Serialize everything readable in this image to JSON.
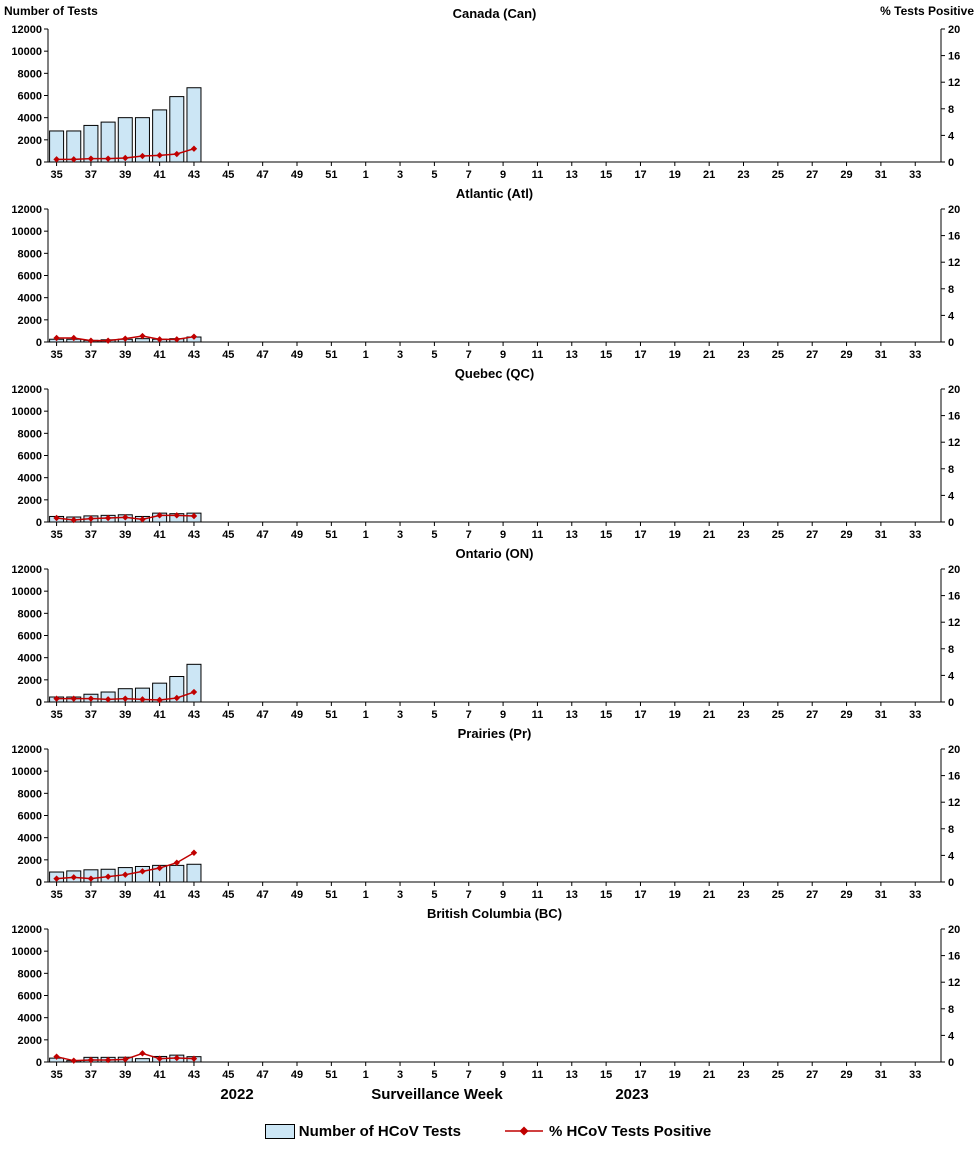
{
  "axes": {
    "left_title": "Number of Tests",
    "right_title": "% Tests Positive",
    "left_max": 12000,
    "left_ticks": [
      0,
      2000,
      4000,
      6000,
      8000,
      10000,
      12000
    ],
    "right_max": 20,
    "right_ticks": [
      0,
      4,
      8,
      12,
      16,
      20
    ],
    "n_slots": 52,
    "x_tick_labels": [
      "35",
      "37",
      "39",
      "41",
      "43",
      "45",
      "47",
      "49",
      "51",
      "1",
      "3",
      "5",
      "7",
      "9",
      "11",
      "13",
      "15",
      "17",
      "19",
      "21",
      "23",
      "25",
      "27",
      "29",
      "31",
      "33"
    ],
    "bar_weeks": [
      35,
      36,
      37,
      38,
      39,
      40,
      41,
      42,
      43
    ]
  },
  "colors": {
    "bar_fill": "#cce6f5",
    "bar_border": "#000000",
    "line": "#c00000"
  },
  "footer": {
    "year_left": "2022",
    "x_axis_title": "Surveillance Week",
    "year_right": "2023"
  },
  "legend": {
    "bars": "Number of HCoV Tests",
    "line": "% HCoV Tests Positive"
  },
  "chart_data": [
    {
      "type": "bar+line",
      "id": "can",
      "title": "Canada (Can)",
      "bars": [
        2800,
        2800,
        3300,
        3600,
        4000,
        4000,
        4700,
        5900,
        6700
      ],
      "pct_positive": [
        0.4,
        0.4,
        0.5,
        0.5,
        0.6,
        0.9,
        1.0,
        1.2,
        2.0
      ]
    },
    {
      "type": "bar+line",
      "id": "atl",
      "title": "Atlantic (Atl)",
      "bars": [
        250,
        250,
        150,
        200,
        250,
        300,
        250,
        300,
        450
      ],
      "pct_positive": [
        0.6,
        0.6,
        0.2,
        0.2,
        0.5,
        0.9,
        0.4,
        0.4,
        0.8
      ]
    },
    {
      "type": "bar+line",
      "id": "qc",
      "title": "Quebec (QC)",
      "bars": [
        500,
        450,
        550,
        600,
        650,
        500,
        800,
        750,
        800
      ],
      "pct_positive": [
        0.6,
        0.3,
        0.5,
        0.6,
        0.7,
        0.4,
        1.0,
        1.0,
        0.9
      ]
    },
    {
      "type": "bar+line",
      "id": "on",
      "title": "Ontario (ON)",
      "bars": [
        450,
        450,
        700,
        900,
        1200,
        1250,
        1700,
        2300,
        3400
      ],
      "pct_positive": [
        0.5,
        0.5,
        0.5,
        0.4,
        0.5,
        0.4,
        0.3,
        0.6,
        1.5
      ]
    },
    {
      "type": "bar+line",
      "id": "pr",
      "title": "Prairies (Pr)",
      "bars": [
        900,
        1000,
        1100,
        1150,
        1300,
        1400,
        1500,
        1500,
        1600
      ],
      "pct_positive": [
        0.5,
        0.7,
        0.5,
        0.8,
        1.1,
        1.6,
        2.1,
        2.9,
        4.4
      ]
    },
    {
      "type": "bar+line",
      "id": "bc",
      "title": "British Columbia (BC)",
      "bars": [
        350,
        120,
        420,
        420,
        430,
        300,
        500,
        620,
        480
      ],
      "pct_positive": [
        0.8,
        0.2,
        0.3,
        0.3,
        0.4,
        1.3,
        0.5,
        0.6,
        0.5
      ]
    }
  ]
}
